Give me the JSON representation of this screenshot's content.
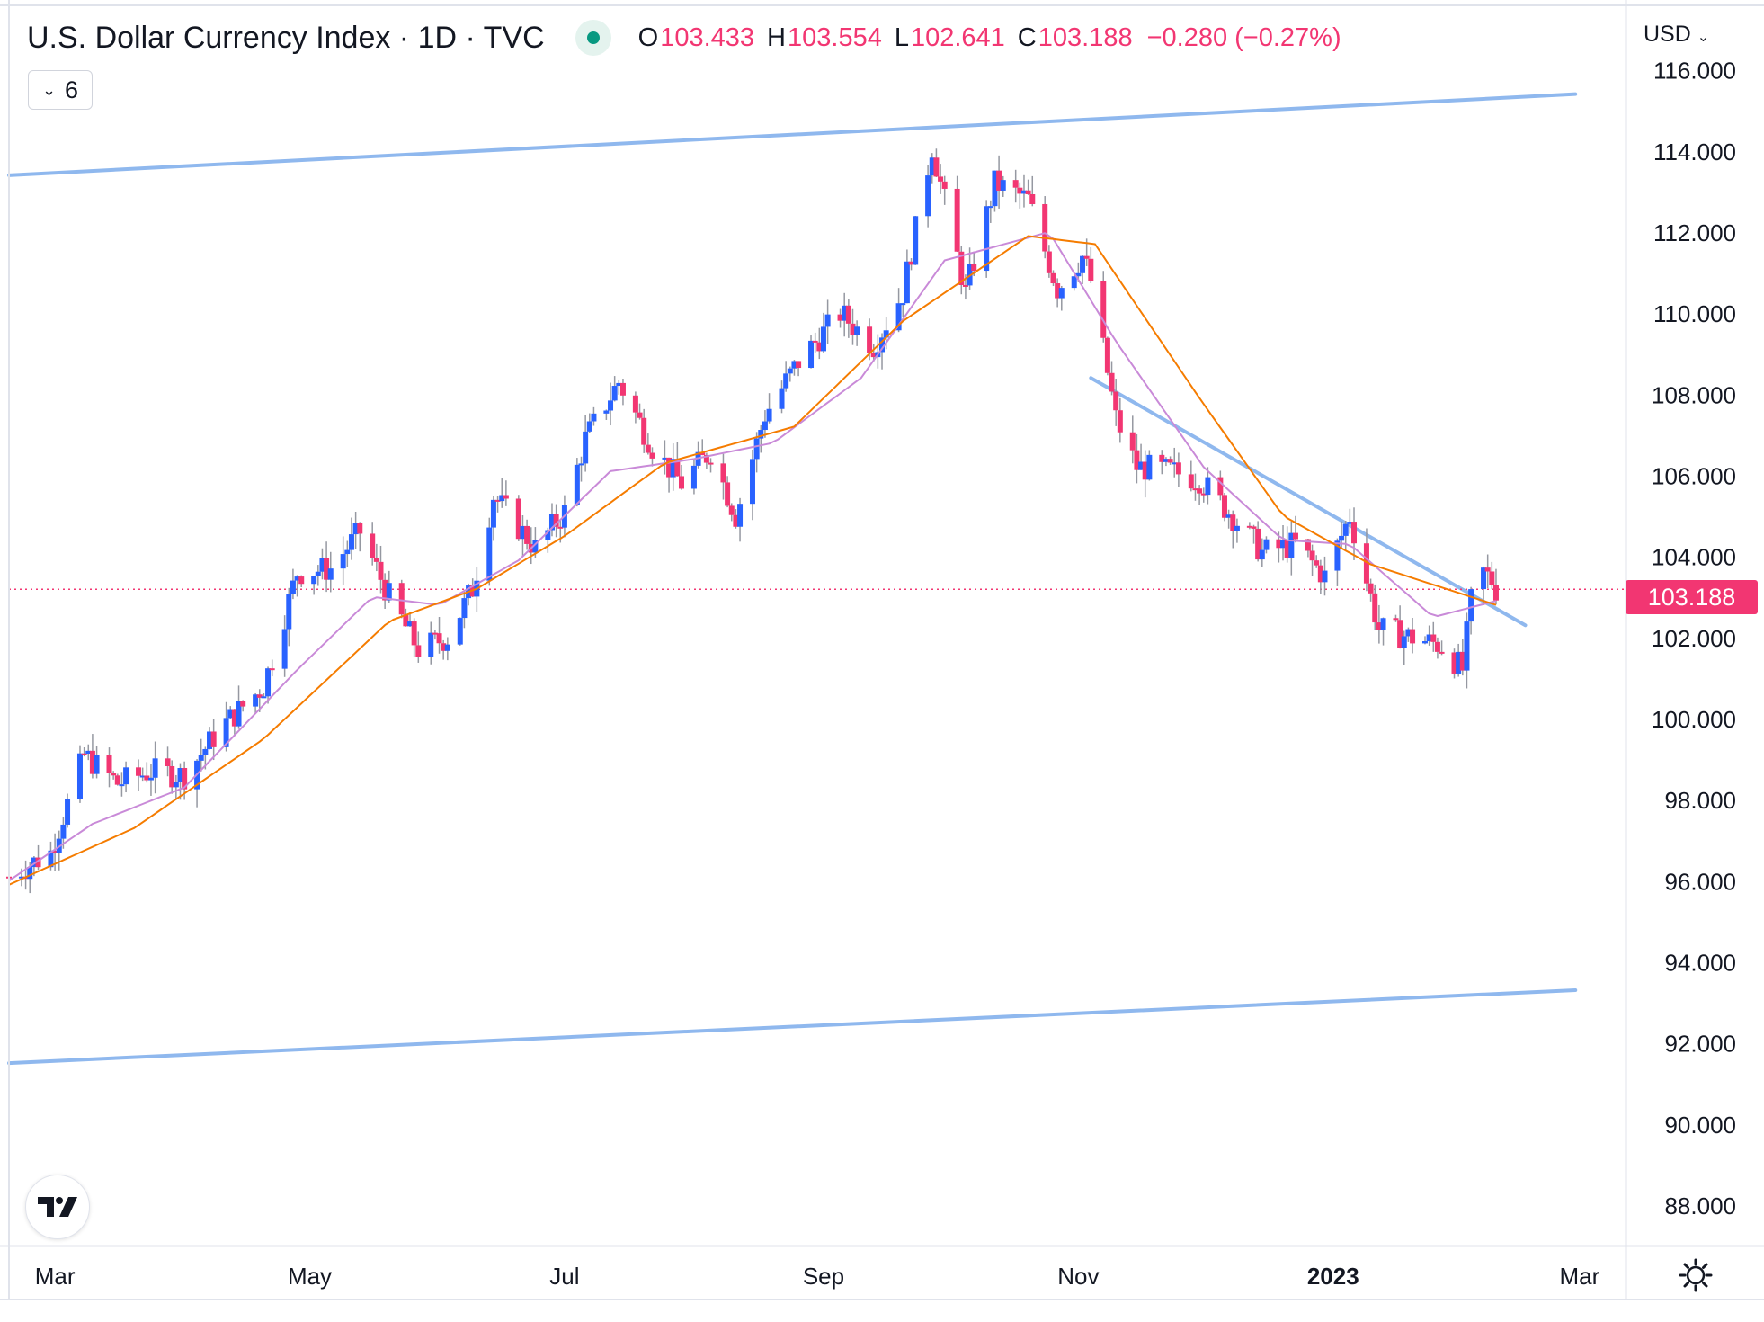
{
  "header": {
    "title": "U.S. Dollar Currency Index · 1D · TVC",
    "open_label": "O",
    "open": "103.433",
    "high_label": "H",
    "high": "103.554",
    "low_label": "L",
    "low": "102.641",
    "close_label": "C",
    "close": "103.188",
    "change": "−0.280 (−0.27%)",
    "market_status_icon": "market-open-dot-icon"
  },
  "indicators_button": {
    "count": "6",
    "icon": "chevron-down-icon"
  },
  "price_scale": {
    "currency": "USD",
    "last_price_label": "103.188"
  },
  "colors": {
    "up": "#2962ff",
    "down": "#f23672",
    "wick": "#9598a1",
    "ma_fast": "#c98ad8",
    "ma_slow": "#f57c00",
    "trend": "#8fb8ee"
  },
  "chart_data": {
    "type": "candlestick",
    "title": "U.S. Dollar Currency Index · 1D · TVC",
    "ylim": [
      87,
      117.5
    ],
    "y_ticks": [
      88,
      90,
      92,
      94,
      96,
      98,
      100,
      102,
      104,
      106,
      108,
      110,
      112,
      114,
      116
    ],
    "y_tick_labels": [
      "88.000",
      "90.000",
      "92.000",
      "94.000",
      "96.000",
      "98.000",
      "100.000",
      "102.000",
      "104.000",
      "106.000",
      "108.000",
      "110.000",
      "112.000",
      "114.000",
      "116.000"
    ],
    "x_range": [
      "2022-02-18",
      "2023-03-12"
    ],
    "x_ticks": [
      {
        "date": "2022-03-01",
        "label": "Mar",
        "bold": false
      },
      {
        "date": "2022-05-01",
        "label": "May",
        "bold": false
      },
      {
        "date": "2022-07-01",
        "label": "Jul",
        "bold": false
      },
      {
        "date": "2022-09-01",
        "label": "Sep",
        "bold": false
      },
      {
        "date": "2022-11-01",
        "label": "Nov",
        "bold": false
      },
      {
        "date": "2023-01-01",
        "label": "2023",
        "bold": true
      },
      {
        "date": "2023-03-01",
        "label": "Mar",
        "bold": false
      }
    ],
    "last_close": 103.188,
    "close_series": [
      [
        "2022-02-18",
        96.1
      ],
      [
        "2022-02-28",
        96.7
      ],
      [
        "2022-03-08",
        99.1
      ],
      [
        "2022-03-16",
        98.4
      ],
      [
        "2022-03-24",
        98.7
      ],
      [
        "2022-04-01",
        98.6
      ],
      [
        "2022-04-10",
        99.8
      ],
      [
        "2022-04-20",
        100.8
      ],
      [
        "2022-04-28",
        103.6
      ],
      [
        "2022-05-06",
        103.7
      ],
      [
        "2022-05-13",
        104.6
      ],
      [
        "2022-05-20",
        103.0
      ],
      [
        "2022-05-27",
        101.7
      ],
      [
        "2022-06-03",
        102.0
      ],
      [
        "2022-06-09",
        103.2
      ],
      [
        "2022-06-14",
        105.5
      ],
      [
        "2022-06-24",
        104.2
      ],
      [
        "2022-07-01",
        105.1
      ],
      [
        "2022-07-06",
        106.9
      ],
      [
        "2022-07-14",
        108.3
      ],
      [
        "2022-07-22",
        106.7
      ],
      [
        "2022-07-29",
        105.8
      ],
      [
        "2022-08-05",
        106.6
      ],
      [
        "2022-08-11",
        105.0
      ],
      [
        "2022-08-18",
        107.5
      ],
      [
        "2022-08-26",
        108.8
      ],
      [
        "2022-09-05",
        110.0
      ],
      [
        "2022-09-13",
        109.2
      ],
      [
        "2022-09-20",
        110.5
      ],
      [
        "2022-09-27",
        114.1
      ],
      [
        "2022-10-05",
        110.5
      ],
      [
        "2022-10-12",
        113.2
      ],
      [
        "2022-10-20",
        112.8
      ],
      [
        "2022-10-27",
        110.6
      ],
      [
        "2022-11-02",
        111.4
      ],
      [
        "2022-11-04",
        110.8
      ],
      [
        "2022-11-10",
        107.4
      ],
      [
        "2022-11-15",
        106.2
      ],
      [
        "2022-11-23",
        106.1
      ],
      [
        "2022-11-30",
        105.9
      ],
      [
        "2022-12-07",
        105.1
      ],
      [
        "2022-12-15",
        104.1
      ],
      [
        "2022-12-23",
        104.3
      ],
      [
        "2022-12-30",
        103.5
      ],
      [
        "2023-01-05",
        105.0
      ],
      [
        "2023-01-12",
        102.2
      ],
      [
        "2023-01-20",
        102.0
      ],
      [
        "2023-01-27",
        101.8
      ],
      [
        "2023-02-01",
        101.2
      ],
      [
        "2023-02-03",
        102.9
      ],
      [
        "2023-02-06",
        103.6
      ],
      [
        "2023-02-08",
        103.4
      ],
      [
        "2023-02-09",
        103.19
      ]
    ],
    "ma_fast": [
      [
        "2022-02-18",
        96.0
      ],
      [
        "2022-03-10",
        97.4
      ],
      [
        "2022-04-01",
        98.3
      ],
      [
        "2022-04-28",
        101.2
      ],
      [
        "2022-05-16",
        103.0
      ],
      [
        "2022-06-01",
        102.8
      ],
      [
        "2022-06-20",
        103.9
      ],
      [
        "2022-07-12",
        106.1
      ],
      [
        "2022-08-01",
        106.4
      ],
      [
        "2022-08-20",
        106.8
      ],
      [
        "2022-09-10",
        108.4
      ],
      [
        "2022-09-30",
        111.3
      ],
      [
        "2022-10-25",
        112.0
      ],
      [
        "2022-11-10",
        109.3
      ],
      [
        "2022-12-01",
        106.2
      ],
      [
        "2022-12-20",
        104.4
      ],
      [
        "2023-01-05",
        104.3
      ],
      [
        "2023-01-25",
        102.5
      ],
      [
        "2023-02-09",
        102.9
      ]
    ],
    "ma_slow": [
      [
        "2022-02-18",
        95.9
      ],
      [
        "2022-03-20",
        97.3
      ],
      [
        "2022-04-20",
        99.5
      ],
      [
        "2022-05-20",
        102.4
      ],
      [
        "2022-06-10",
        103.2
      ],
      [
        "2022-07-01",
        104.5
      ],
      [
        "2022-07-25",
        106.3
      ],
      [
        "2022-08-25",
        107.2
      ],
      [
        "2022-09-20",
        109.8
      ],
      [
        "2022-10-20",
        111.9
      ],
      [
        "2022-11-05",
        111.7
      ],
      [
        "2022-11-30",
        107.9
      ],
      [
        "2022-12-20",
        105.0
      ],
      [
        "2023-01-10",
        103.8
      ],
      [
        "2023-02-09",
        102.8
      ]
    ],
    "trend_lines": [
      {
        "name": "upper-channel",
        "from": [
          "2022-02-18",
          113.4
        ],
        "to": [
          "2023-02-28",
          115.4
        ]
      },
      {
        "name": "lower-channel",
        "from": [
          "2022-02-18",
          91.5
        ],
        "to": [
          "2023-02-28",
          93.3
        ]
      },
      {
        "name": "descending-resistance",
        "from": [
          "2022-11-04",
          108.4
        ],
        "to": [
          "2023-02-16",
          102.3
        ]
      }
    ],
    "grid": false
  }
}
